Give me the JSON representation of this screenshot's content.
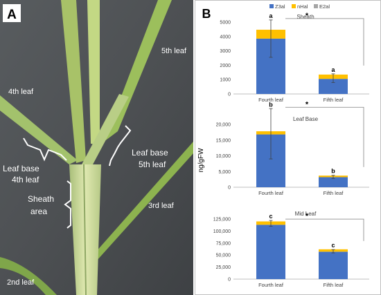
{
  "photo_panel": {
    "letter": "A",
    "labels": {
      "leaf5": "5th leaf",
      "leaf4": "4th leaf",
      "leaf3": "3rd leaf",
      "leaf2": "2nd leaf",
      "leaf_base_4_line1": "Leaf base",
      "leaf_base_4_line2": "4th leaf",
      "leaf_base_5_line1": "Leaf base",
      "leaf_base_5_line2": "5th leaf",
      "sheath_line1": "Sheath",
      "sheath_line2": "area"
    }
  },
  "chart_panel": {
    "letter": "B",
    "legend": [
      {
        "name": "Z3al",
        "color": "#4472C4"
      },
      {
        "name": "nHal",
        "color": "#FFC000"
      },
      {
        "name": "E2al",
        "color": "#A5A5A5"
      }
    ],
    "shared_ylabel": "ng/gFW"
  },
  "chart_data": [
    {
      "type": "bar",
      "stacked": true,
      "title": "Sheath",
      "categories": [
        "Fourth leaf",
        "Fifth leaf"
      ],
      "series": [
        {
          "name": "Z3al",
          "values": [
            3850,
            1050
          ]
        },
        {
          "name": "nHal",
          "values": [
            620,
            300
          ]
        },
        {
          "name": "E2al",
          "values": [
            0,
            0
          ]
        }
      ],
      "error_bar_center": [
        3850,
        1100
      ],
      "error_bar_halfwidth": [
        1300,
        300
      ],
      "letters": [
        "a",
        "a"
      ],
      "significance": "*",
      "ylim": [
        0,
        5000
      ],
      "yticks": [
        0,
        1000,
        2000,
        3000,
        4000,
        5000
      ],
      "ytick_labels": [
        "0",
        "1000",
        "2000",
        "3000",
        "4000",
        "5000"
      ]
    },
    {
      "type": "bar",
      "stacked": true,
      "title": "Leaf Base",
      "categories": [
        "Fourth leaf",
        "Fifth leaf"
      ],
      "series": [
        {
          "name": "Z3al",
          "values": [
            16800,
            3200
          ]
        },
        {
          "name": "nHal",
          "values": [
            1000,
            500
          ]
        },
        {
          "name": "E2al",
          "values": [
            0,
            0
          ]
        }
      ],
      "error_bar_center": [
        17000,
        3300
      ],
      "error_bar_halfwidth": [
        8000,
        500
      ],
      "letters": [
        "b",
        "b"
      ],
      "significance": "*",
      "ylim": [
        0,
        20000
      ],
      "yticks": [
        0,
        5000,
        10000,
        15000,
        20000
      ],
      "ytick_labels": [
        "0",
        "5,000",
        "10,000",
        "15,000",
        "20,000"
      ]
    },
    {
      "type": "bar",
      "stacked": true,
      "title": "Mid Leaf",
      "categories": [
        "Fourth leaf",
        "Fifth leaf"
      ],
      "series": [
        {
          "name": "Z3al",
          "values": [
            113000,
            57000
          ]
        },
        {
          "name": "nHal",
          "values": [
            7000,
            5000
          ]
        },
        {
          "name": "E2al",
          "values": [
            0,
            0
          ]
        }
      ],
      "error_bar_center": [
        116000,
        58000
      ],
      "error_bar_halfwidth": [
        6000,
        3500
      ],
      "letters": [
        "c",
        "c"
      ],
      "significance": "*",
      "ylim": [
        0,
        125000
      ],
      "yticks": [
        0,
        25000,
        50000,
        75000,
        100000,
        125000
      ],
      "ytick_labels": [
        "0",
        "25,000",
        "50,000",
        "75,000",
        "100,000",
        "125,000"
      ]
    }
  ]
}
